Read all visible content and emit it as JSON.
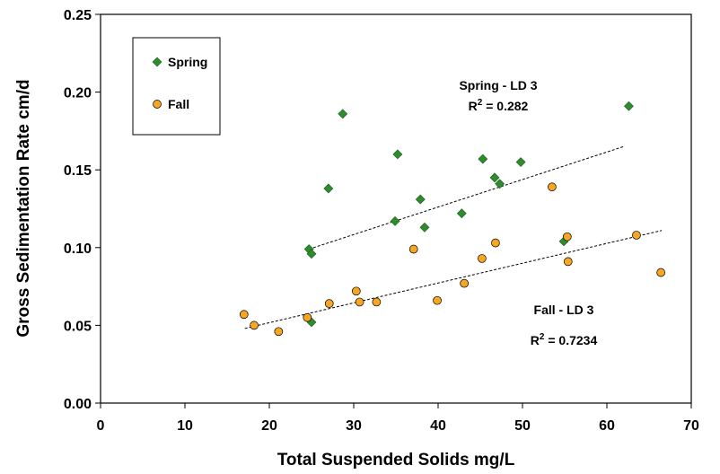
{
  "chart_data": {
    "type": "scatter",
    "xlabel": "Total Suspended Solids mg/L",
    "ylabel": "Gross Sedimentation Rate cm/d",
    "xlim": [
      0,
      70
    ],
    "xticks": [
      0,
      10,
      20,
      30,
      40,
      50,
      60,
      70
    ],
    "ylim": [
      0,
      0.25
    ],
    "yticks": [
      {
        "value": 0,
        "label": "0.00"
      },
      {
        "value": 0.05,
        "label": "0.05"
      },
      {
        "value": 0.1,
        "label": "0.10"
      },
      {
        "value": 0.15,
        "label": "0.15"
      },
      {
        "value": 0.2,
        "label": "0.20"
      },
      {
        "value": 0.25,
        "label": "0.25"
      }
    ],
    "legend": "top-left",
    "series": [
      {
        "name": "Spring",
        "color": "#2e8b2e",
        "marker": "diamond",
        "x": [
          24.7,
          25.0,
          25.0,
          28.7,
          27.0,
          34.9,
          35.2,
          37.9,
          38.4,
          42.8,
          45.3,
          46.7,
          47.3,
          49.8,
          54.9,
          62.6
        ],
        "values": [
          0.099,
          0.096,
          0.052,
          0.186,
          0.138,
          0.117,
          0.16,
          0.131,
          0.113,
          0.122,
          0.157,
          0.145,
          0.141,
          0.155,
          0.104,
          0.191
        ]
      },
      {
        "name": "Fall",
        "color": "#f5a623",
        "marker": "circle",
        "x": [
          17.0,
          18.2,
          21.1,
          24.5,
          27.1,
          30.3,
          30.7,
          32.7,
          37.1,
          39.9,
          43.1,
          45.2,
          46.8,
          53.5,
          55.3,
          55.4,
          63.5,
          66.4
        ],
        "values": [
          0.057,
          0.05,
          0.046,
          0.055,
          0.064,
          0.072,
          0.065,
          0.065,
          0.099,
          0.066,
          0.077,
          0.093,
          0.103,
          0.139,
          0.107,
          0.091,
          0.108,
          0.084
        ]
      }
    ],
    "trendlines": [
      {
        "x": [
          24.7,
          62.0
        ],
        "values": [
          0.099,
          0.165
        ]
      },
      {
        "x": [
          17.1,
          66.5
        ],
        "values": [
          0.048,
          0.111
        ]
      }
    ],
    "annotations": [
      {
        "text": "Spring - LD 3",
        "r2": {
          "base": "R",
          "sup": "2",
          "rest": " = 0.282"
        }
      },
      {
        "text": "Fall - LD 3",
        "r2": {
          "base": "R",
          "sup": "2",
          "rest": " = 0.7234"
        }
      }
    ]
  }
}
